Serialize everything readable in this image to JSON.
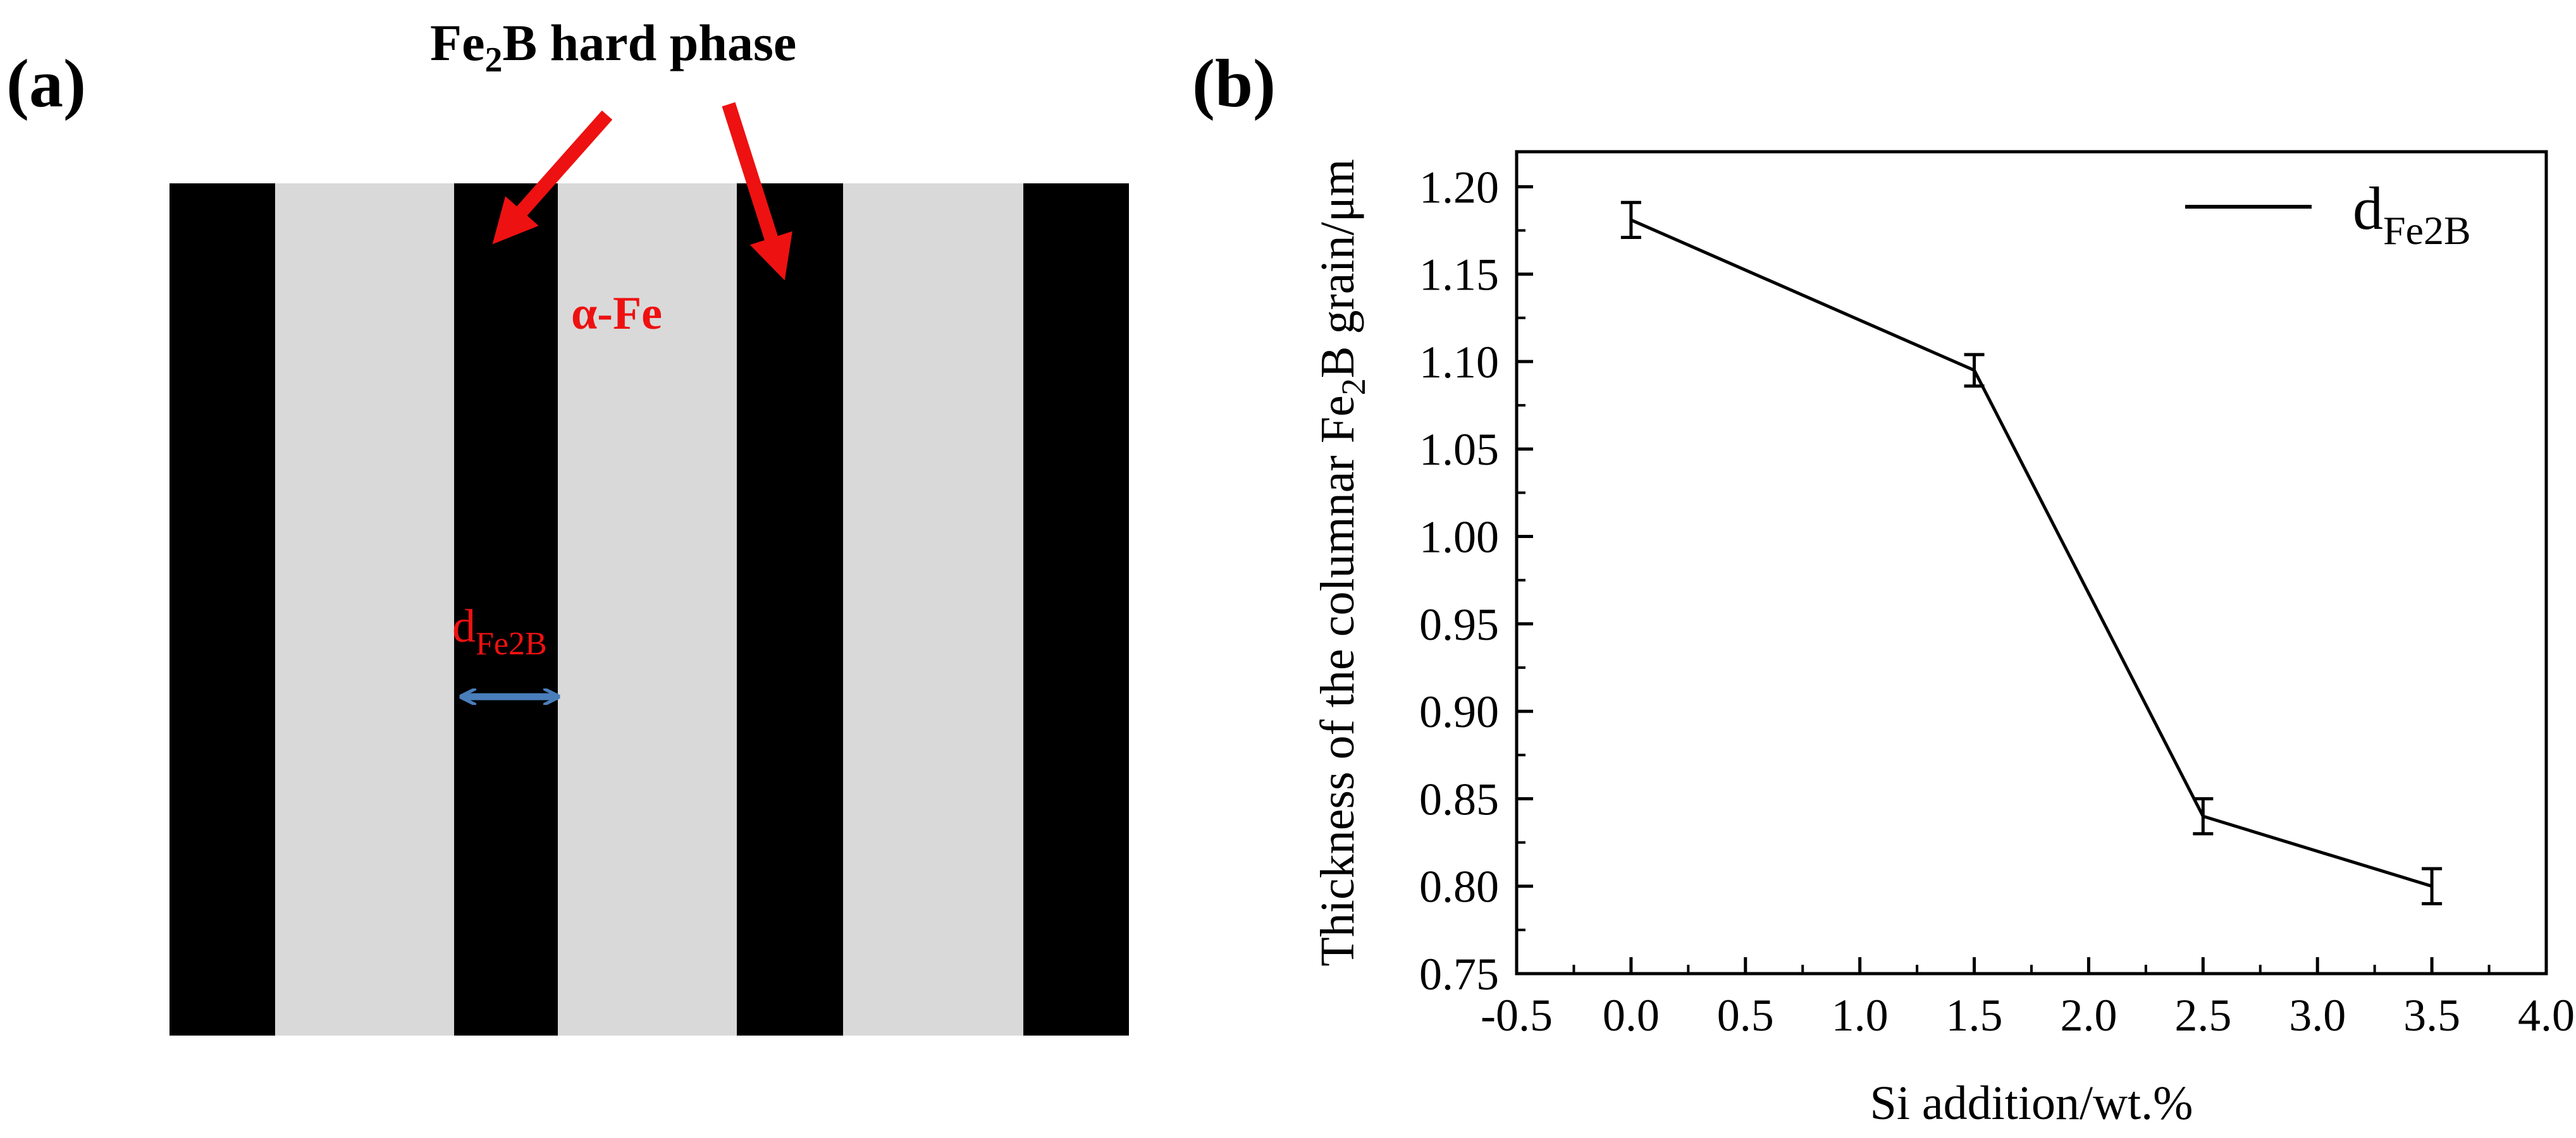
{
  "panel_a": {
    "label": "(a)",
    "hard_phase_label": {
      "prefix": "Fe",
      "sub": "2",
      "suffix": "B hard phase"
    },
    "matrix_label": "α-Fe",
    "thickness_label": {
      "main": "d",
      "sub": "Fe2B"
    },
    "colors": {
      "hard_phase": "#000000",
      "matrix": "#d9d9d9",
      "arrow": "#ee1111",
      "dimension_arrow": "#4a7ebb"
    },
    "band_pattern": [
      "hard",
      "matrix",
      "hard",
      "matrix",
      "hard",
      "matrix",
      "hard"
    ]
  },
  "panel_b": {
    "label": "(b)"
  },
  "chart_data": {
    "type": "line",
    "title": "",
    "xlabel": "Si addition/wt.%",
    "ylabel": {
      "prefix": "Thickness  of the columnar Fe",
      "sub": "2",
      "suffix": "B grain/μm"
    },
    "xlim": [
      -0.5,
      4.0
    ],
    "ylim": [
      0.75,
      1.22
    ],
    "x_ticks": [
      -0.5,
      0.0,
      0.5,
      1.0,
      1.5,
      2.0,
      2.5,
      3.0,
      3.5,
      4.0
    ],
    "x_tick_labels": [
      "-0.5",
      "0.0",
      "0.5",
      "1.0",
      "1.5",
      "2.0",
      "2.5",
      "3.0",
      "3.5",
      "4.0"
    ],
    "y_ticks": [
      0.75,
      0.8,
      0.85,
      0.9,
      0.95,
      1.0,
      1.05,
      1.1,
      1.15,
      1.2
    ],
    "y_tick_labels": [
      "0.75",
      "0.80",
      "0.85",
      "0.90",
      "0.95",
      "1.00",
      "1.05",
      "1.10",
      "1.15",
      "1.20"
    ],
    "series": [
      {
        "name": {
          "main": "d",
          "sub": "Fe2B"
        },
        "x": [
          0.0,
          1.5,
          2.5,
          3.5
        ],
        "y": [
          1.181,
          1.095,
          0.84,
          0.8
        ],
        "error": [
          0.01,
          0.009,
          0.01,
          0.01
        ],
        "color": "#000000"
      }
    ],
    "legend_position": "top-right",
    "grid": false
  }
}
